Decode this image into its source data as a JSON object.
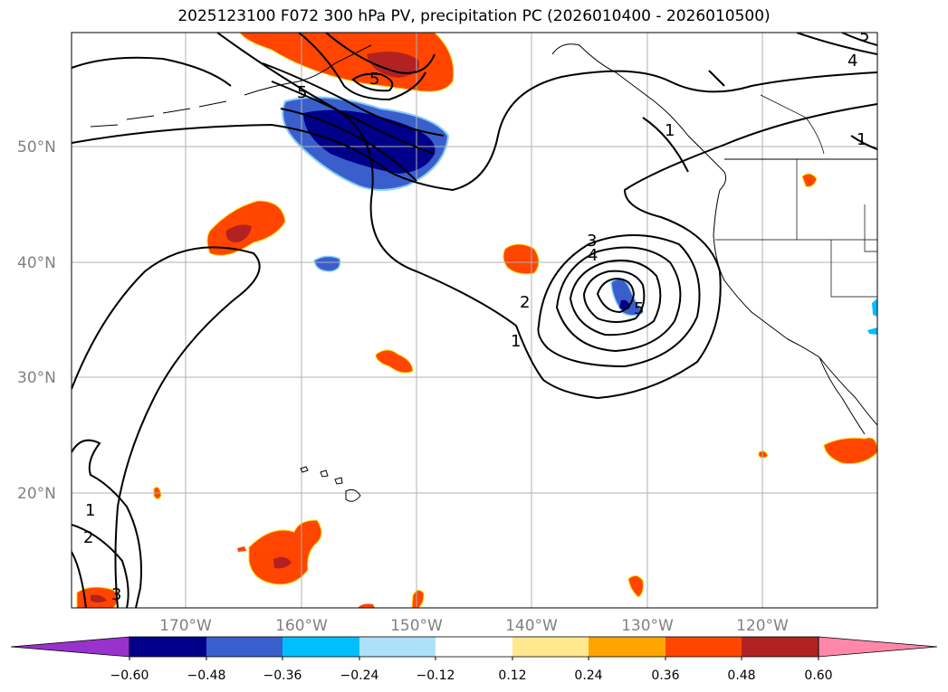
{
  "title": "2025123100 F072 300 hPa PV, precipitation PC (2026010400 - 2026010500)",
  "map": {
    "lat_labels": [
      "50°N",
      "40°N",
      "30°N",
      "20°N"
    ],
    "lon_labels": [
      "170°W",
      "160°W",
      "150°W",
      "140°W",
      "130°W",
      "120°W"
    ],
    "pv_contour_labels": [
      "5",
      "5",
      "4",
      "5",
      "3",
      "4",
      "5",
      "2",
      "1",
      "1",
      "2",
      "3",
      "1",
      "1"
    ],
    "gridlines": true,
    "coastlines": true
  },
  "colorbar": {
    "tick_labels": [
      "−0.60",
      "−0.48",
      "−0.36",
      "−0.24",
      "−0.12",
      "0.12",
      "0.24",
      "0.36",
      "0.48",
      "0.60"
    ],
    "colors": [
      "#9932CC",
      "#00008B",
      "#3A5FCD",
      "#00BFFF",
      "#ADE1FA",
      "#FFFFFF",
      "#FFE88F",
      "#FFA500",
      "#FF4500",
      "#B22222",
      "#FF88AA"
    ],
    "extend": "both"
  }
}
